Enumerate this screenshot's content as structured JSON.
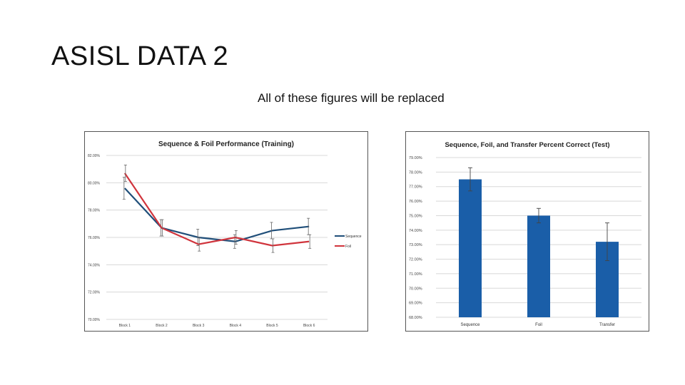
{
  "slide": {
    "title": "ASISL DATA 2",
    "subtitle": "All of these figures will be replaced"
  },
  "chart_data": [
    {
      "type": "line",
      "title": "Sequence & Foil Performance (Training)",
      "categories": [
        "Block 1",
        "Block 2",
        "Block 3",
        "Block 4",
        "Block 5",
        "Block 6"
      ],
      "ylim": [
        70,
        82
      ],
      "yticks": [
        70,
        72,
        74,
        76,
        78,
        80,
        82
      ],
      "ytick_labels": [
        "70.00%",
        "72.00%",
        "74.00%",
        "76.00%",
        "78.00%",
        "80.00%",
        "82.00%"
      ],
      "grid": true,
      "legend": "right",
      "series": [
        {
          "name": "Sequence",
          "color": "#1f4e79",
          "values": [
            79.6,
            76.7,
            76.0,
            75.7,
            76.5,
            76.8
          ],
          "errors": [
            0.8,
            0.6,
            0.6,
            0.5,
            0.6,
            0.6
          ]
        },
        {
          "name": "Foil",
          "color": "#d0343c",
          "values": [
            80.7,
            76.7,
            75.5,
            76.0,
            75.4,
            75.7
          ],
          "errors": [
            0.6,
            0.6,
            0.5,
            0.5,
            0.5,
            0.5
          ]
        }
      ]
    },
    {
      "type": "bar",
      "title": "Sequence, Foil, and Transfer Percent Correct (Test)",
      "categories": [
        "Sequence",
        "Foil",
        "Transfer"
      ],
      "values": [
        77.5,
        75.0,
        73.2
      ],
      "errors": [
        0.8,
        0.5,
        1.3
      ],
      "ylim": [
        68,
        79
      ],
      "yticks": [
        68,
        69,
        70,
        71,
        72,
        73,
        74,
        75,
        76,
        77,
        78,
        79
      ],
      "ytick_labels": [
        "68.00%",
        "69.00%",
        "70.00%",
        "71.00%",
        "72.00%",
        "73.00%",
        "74.00%",
        "75.00%",
        "76.00%",
        "77.00%",
        "78.00%",
        "79.00%"
      ],
      "grid": true,
      "color": "#1a5ea8"
    }
  ]
}
